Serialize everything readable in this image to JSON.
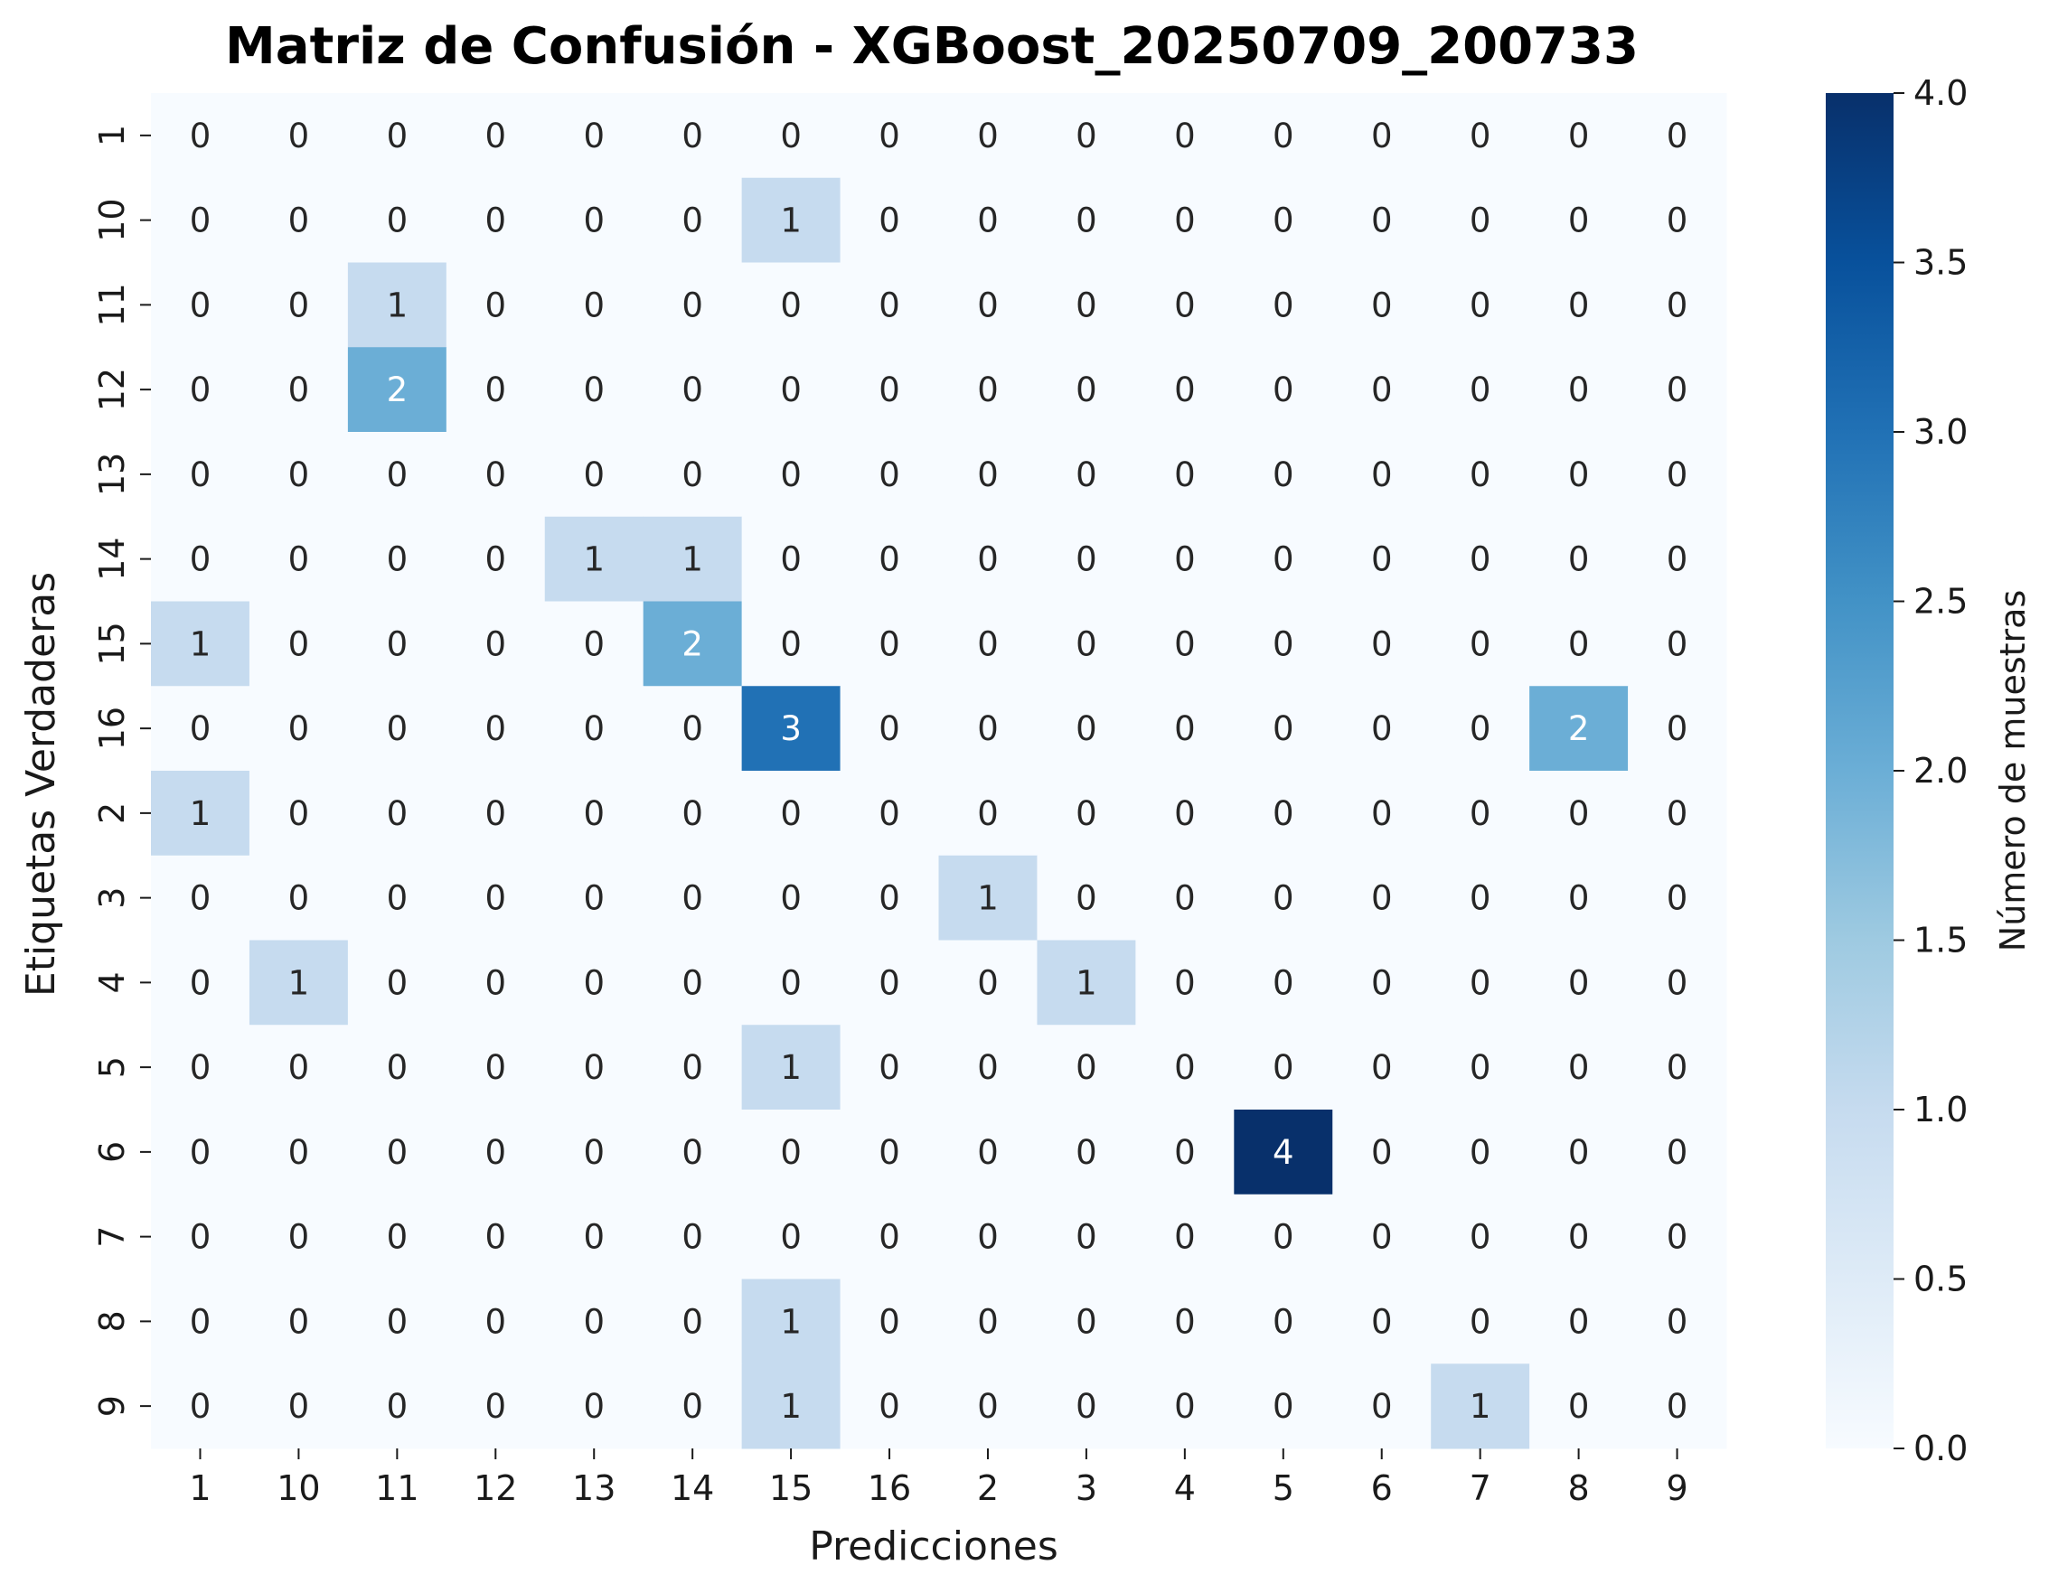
{
  "chart_data": {
    "type": "heatmap",
    "title": "Matriz de Confusión - XGBoost_20250709_200733",
    "xlabel": "Predicciones",
    "ylabel": "Etiquetas Verdaderas",
    "x_categories": [
      "1",
      "10",
      "11",
      "12",
      "13",
      "14",
      "15",
      "16",
      "2",
      "3",
      "4",
      "5",
      "6",
      "7",
      "8",
      "9"
    ],
    "y_categories": [
      "1",
      "10",
      "11",
      "12",
      "13",
      "14",
      "15",
      "16",
      "2",
      "3",
      "4",
      "5",
      "6",
      "7",
      "8",
      "9"
    ],
    "values": [
      [
        0,
        0,
        0,
        0,
        0,
        0,
        0,
        0,
        0,
        0,
        0,
        0,
        0,
        0,
        0,
        0
      ],
      [
        0,
        0,
        0,
        0,
        0,
        0,
        1,
        0,
        0,
        0,
        0,
        0,
        0,
        0,
        0,
        0
      ],
      [
        0,
        0,
        1,
        0,
        0,
        0,
        0,
        0,
        0,
        0,
        0,
        0,
        0,
        0,
        0,
        0
      ],
      [
        0,
        0,
        2,
        0,
        0,
        0,
        0,
        0,
        0,
        0,
        0,
        0,
        0,
        0,
        0,
        0
      ],
      [
        0,
        0,
        0,
        0,
        0,
        0,
        0,
        0,
        0,
        0,
        0,
        0,
        0,
        0,
        0,
        0
      ],
      [
        0,
        0,
        0,
        0,
        1,
        1,
        0,
        0,
        0,
        0,
        0,
        0,
        0,
        0,
        0,
        0
      ],
      [
        1,
        0,
        0,
        0,
        0,
        2,
        0,
        0,
        0,
        0,
        0,
        0,
        0,
        0,
        0,
        0
      ],
      [
        0,
        0,
        0,
        0,
        0,
        0,
        3,
        0,
        0,
        0,
        0,
        0,
        0,
        0,
        2,
        0
      ],
      [
        1,
        0,
        0,
        0,
        0,
        0,
        0,
        0,
        0,
        0,
        0,
        0,
        0,
        0,
        0,
        0
      ],
      [
        0,
        0,
        0,
        0,
        0,
        0,
        0,
        0,
        1,
        0,
        0,
        0,
        0,
        0,
        0,
        0
      ],
      [
        0,
        1,
        0,
        0,
        0,
        0,
        0,
        0,
        0,
        1,
        0,
        0,
        0,
        0,
        0,
        0
      ],
      [
        0,
        0,
        0,
        0,
        0,
        0,
        1,
        0,
        0,
        0,
        0,
        0,
        0,
        0,
        0,
        0
      ],
      [
        0,
        0,
        0,
        0,
        0,
        0,
        0,
        0,
        0,
        0,
        0,
        4,
        0,
        0,
        0,
        0
      ],
      [
        0,
        0,
        0,
        0,
        0,
        0,
        0,
        0,
        0,
        0,
        0,
        0,
        0,
        0,
        0,
        0
      ],
      [
        0,
        0,
        0,
        0,
        0,
        0,
        1,
        0,
        0,
        0,
        0,
        0,
        0,
        0,
        0,
        0
      ],
      [
        0,
        0,
        0,
        0,
        0,
        0,
        1,
        0,
        0,
        0,
        0,
        0,
        0,
        1,
        0,
        0
      ]
    ],
    "colorbar": {
      "label": "Número de muestras",
      "range": [
        0,
        4
      ],
      "ticks": [
        "0.0",
        "0.5",
        "1.0",
        "1.5",
        "2.0",
        "2.5",
        "3.0",
        "3.5",
        "4.0"
      ],
      "colormap": "Blues"
    },
    "grid": false
  }
}
